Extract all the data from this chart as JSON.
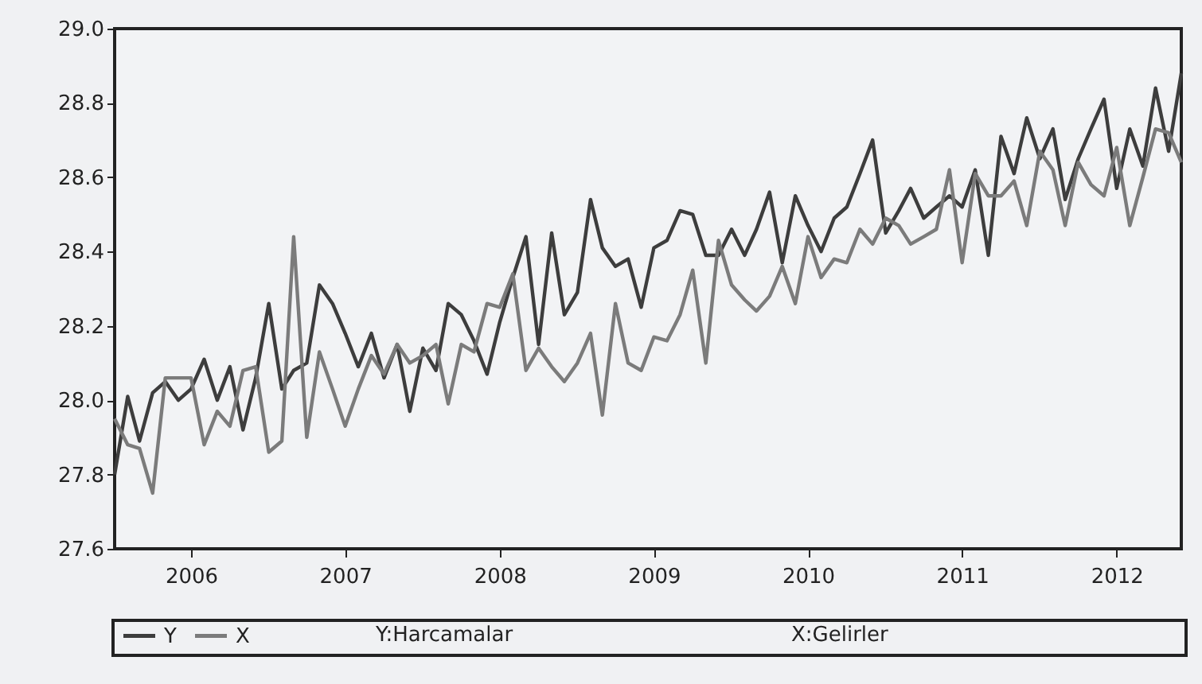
{
  "chart_data": {
    "type": "line",
    "x": [
      "2006-01",
      "2006-02",
      "2006-03",
      "2006-04",
      "2006-05",
      "2006-06",
      "2006-07",
      "2006-08",
      "2006-09",
      "2006-10",
      "2006-11",
      "2006-12",
      "2007-01",
      "2007-02",
      "2007-03",
      "2007-04",
      "2007-05",
      "2007-06",
      "2007-07",
      "2007-08",
      "2007-09",
      "2007-10",
      "2007-11",
      "2007-12",
      "2008-01",
      "2008-02",
      "2008-03",
      "2008-04",
      "2008-05",
      "2008-06",
      "2008-07",
      "2008-08",
      "2008-09",
      "2008-10",
      "2008-11",
      "2008-12",
      "2009-01",
      "2009-02",
      "2009-03",
      "2009-04",
      "2009-05",
      "2009-06",
      "2009-07",
      "2009-08",
      "2009-09",
      "2009-10",
      "2009-11",
      "2009-12",
      "2010-01",
      "2010-02",
      "2010-03",
      "2010-04",
      "2010-05",
      "2010-06",
      "2010-07",
      "2010-08",
      "2010-09",
      "2010-10",
      "2010-11",
      "2010-12",
      "2011-01",
      "2011-02",
      "2011-03",
      "2011-04",
      "2011-05",
      "2011-06",
      "2011-07",
      "2011-08",
      "2011-09",
      "2011-10",
      "2011-11",
      "2011-12",
      "2012-01",
      "2012-02",
      "2012-03",
      "2012-04",
      "2012-05",
      "2012-06",
      "2012-07",
      "2012-08",
      "2012-09",
      "2012-10",
      "2012-11",
      "2012-12"
    ],
    "series": [
      {
        "name": "Y",
        "color": "#3d3d3d",
        "values": [
          27.8,
          28.01,
          27.89,
          28.02,
          28.05,
          28.0,
          28.03,
          28.11,
          28.0,
          28.09,
          27.92,
          28.06,
          28.26,
          28.03,
          28.08,
          28.1,
          28.31,
          28.26,
          28.18,
          28.09,
          28.18,
          28.06,
          28.15,
          27.97,
          28.14,
          28.08,
          28.26,
          28.23,
          28.16,
          28.07,
          28.21,
          28.33,
          28.44,
          28.15,
          28.45,
          28.23,
          28.29,
          28.54,
          28.41,
          28.36,
          28.38,
          28.25,
          28.41,
          28.43,
          28.51,
          28.5,
          28.39,
          28.39,
          28.46,
          28.39,
          28.46,
          28.56,
          28.37,
          28.55,
          28.47,
          28.4,
          28.49,
          28.52,
          28.61,
          28.7,
          28.45,
          28.51,
          28.57,
          28.49,
          28.52,
          28.55,
          28.52,
          28.62,
          28.39,
          28.71,
          28.61,
          28.76,
          28.65,
          28.73,
          28.54,
          28.65,
          28.73,
          28.81,
          28.57,
          28.73,
          28.63,
          28.84,
          28.67,
          28.88
        ]
      },
      {
        "name": "X",
        "color": "#7b7b7b",
        "values": [
          27.95,
          27.88,
          27.87,
          27.75,
          28.06,
          28.06,
          28.06,
          27.88,
          27.97,
          27.93,
          28.08,
          28.09,
          27.86,
          27.89,
          28.44,
          27.9,
          28.13,
          28.03,
          27.93,
          28.03,
          28.12,
          28.07,
          28.15,
          28.1,
          28.12,
          28.15,
          27.99,
          28.15,
          28.13,
          28.26,
          28.25,
          28.34,
          28.08,
          28.14,
          28.09,
          28.05,
          28.1,
          28.18,
          27.96,
          28.26,
          28.1,
          28.08,
          28.17,
          28.16,
          28.23,
          28.35,
          28.1,
          28.43,
          28.31,
          28.27,
          28.24,
          28.28,
          28.36,
          28.26,
          28.44,
          28.33,
          28.38,
          28.37,
          28.46,
          28.42,
          28.49,
          28.47,
          28.42,
          28.44,
          28.46,
          28.62,
          28.37,
          28.61,
          28.55,
          28.55,
          28.59,
          28.47,
          28.67,
          28.62,
          28.47,
          28.64,
          28.58,
          28.55,
          28.68,
          28.47,
          28.6,
          28.73,
          28.72,
          28.64
        ]
      }
    ],
    "xlim": [
      "2006-01",
      "2012-12"
    ],
    "xticks": [
      {
        "value": "2006-07",
        "label": "2006"
      },
      {
        "value": "2007-07",
        "label": "2007"
      },
      {
        "value": "2008-07",
        "label": "2008"
      },
      {
        "value": "2009-07",
        "label": "2009"
      },
      {
        "value": "2010-07",
        "label": "2010"
      },
      {
        "value": "2011-07",
        "label": "2011"
      },
      {
        "value": "2012-07",
        "label": "2012"
      }
    ],
    "ylim": [
      27.6,
      29.0
    ],
    "yticks": [
      {
        "value": 27.6,
        "label": "27.6"
      },
      {
        "value": 27.8,
        "label": "27.8"
      },
      {
        "value": 28,
        "label": "28.0"
      },
      {
        "value": 28.2,
        "label": "28.2"
      },
      {
        "value": 28.4,
        "label": "28.4"
      },
      {
        "value": 28.6,
        "label": "28.6"
      },
      {
        "value": 28.8,
        "label": "28.8"
      },
      {
        "value": 29,
        "label": "29.0"
      }
    ],
    "annotations": [
      "Y:Harcamalar",
      "X:Gelirler"
    ],
    "legend": "bottom"
  }
}
